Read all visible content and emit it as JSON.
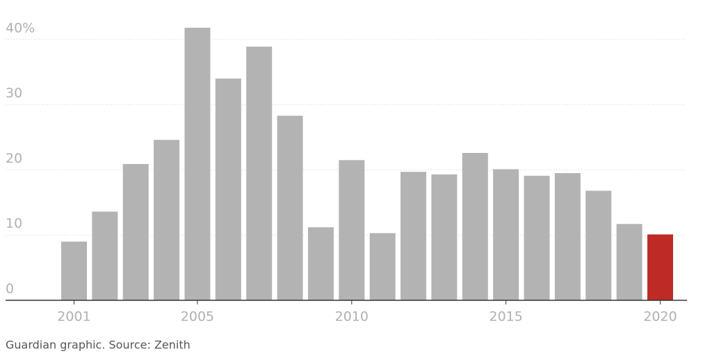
{
  "chart_data": {
    "type": "bar",
    "categories": [
      "2001",
      null,
      null,
      null,
      "2005",
      null,
      null,
      null,
      null,
      "2010",
      null,
      null,
      null,
      null,
      "2015",
      null,
      null,
      null,
      null,
      "2020"
    ],
    "values": [
      9.0,
      13.6,
      20.9,
      24.6,
      41.8,
      34.0,
      38.9,
      28.3,
      11.2,
      21.5,
      10.3,
      19.7,
      19.3,
      22.6,
      20.1,
      19.1,
      19.5,
      16.8,
      11.7,
      10.1
    ],
    "colors": [
      "#b3b3b3",
      "#b3b3b3",
      "#b3b3b3",
      "#b3b3b3",
      "#b3b3b3",
      "#b3b3b3",
      "#b3b3b3",
      "#b3b3b3",
      "#b3b3b3",
      "#b3b3b3",
      "#b3b3b3",
      "#b3b3b3",
      "#b3b3b3",
      "#b3b3b3",
      "#b3b3b3",
      "#b3b3b3",
      "#b3b3b3",
      "#b3b3b3",
      "#b3b3b3",
      "#be2a25"
    ],
    "ylim": [
      0,
      42
    ],
    "yticks": [
      0,
      10,
      20,
      30,
      {
        "value": 40,
        "label": "40%"
      }
    ],
    "grid": true,
    "source": "Guardian graphic. Source: Zenith"
  }
}
